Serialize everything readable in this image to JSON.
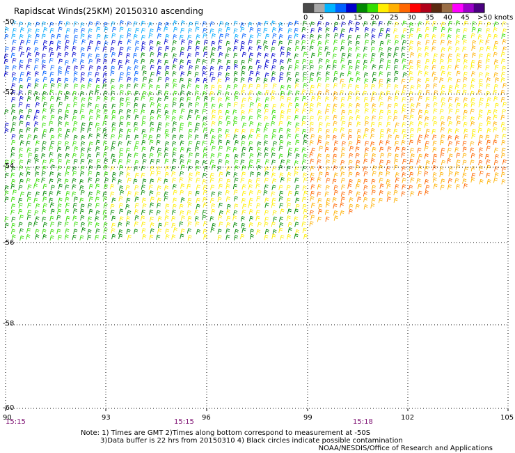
{
  "title": "Rapidscat Winds(25KM) 20150310 ascending",
  "colorbar": {
    "colors": [
      "#4a4a4a",
      "#a8a8a8",
      "#00b4ff",
      "#0060ff",
      "#0000cc",
      "#008800",
      "#33dd00",
      "#ffee00",
      "#ffb000",
      "#ff6600",
      "#ff0000",
      "#b0001a",
      "#5a2a10",
      "#9a6e46",
      "#ff00ff",
      "#9a00c8",
      "#4a0080"
    ],
    "ticks": [
      "0",
      "5",
      "10",
      "15",
      "20",
      "25",
      "30",
      "35",
      "40",
      "45",
      ">50"
    ],
    "unit": "knots"
  },
  "latitudes": [
    "-50",
    "-52",
    "-54",
    "-56",
    "-58",
    "-60"
  ],
  "longitudes": [
    "90",
    "93",
    "96",
    "99",
    "102",
    "105"
  ],
  "times": [
    "15:15",
    "15:15",
    "15:18"
  ],
  "note_line1": "Note: 1) Times are GMT 2)Times along bottom correspond to measurement at -50S",
  "note_line2": "3)Data buffer is 22 hrs from 20150310 4) Black circles indicate possible contamination",
  "credit": "NOAA/NESDIS/Office of Research and Applications"
}
